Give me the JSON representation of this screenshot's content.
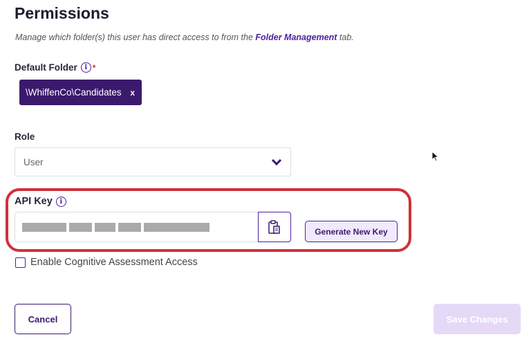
{
  "header": {
    "title": "Permissions",
    "description_prefix": "Manage which folder(s) this user has direct access to from the ",
    "description_link": "Folder Management",
    "description_suffix": " tab."
  },
  "default_folder": {
    "label": "Default Folder",
    "required_mark": "*",
    "chip_value": "\\WhiffenCo\\Candidates",
    "chip_remove": "x"
  },
  "role": {
    "label": "Role",
    "selected": "User"
  },
  "api_key": {
    "label": "API Key",
    "value_masked": true,
    "generate_label": "Generate New Key"
  },
  "cognitive": {
    "label": "Enable Cognitive Assessment Access",
    "checked": false
  },
  "actions": {
    "cancel_label": "Cancel",
    "save_label": "Save Changes",
    "save_disabled": true
  },
  "colors": {
    "brand": "#3b1a6e",
    "accent": "#4b1fa0",
    "highlight": "#d0303a"
  }
}
